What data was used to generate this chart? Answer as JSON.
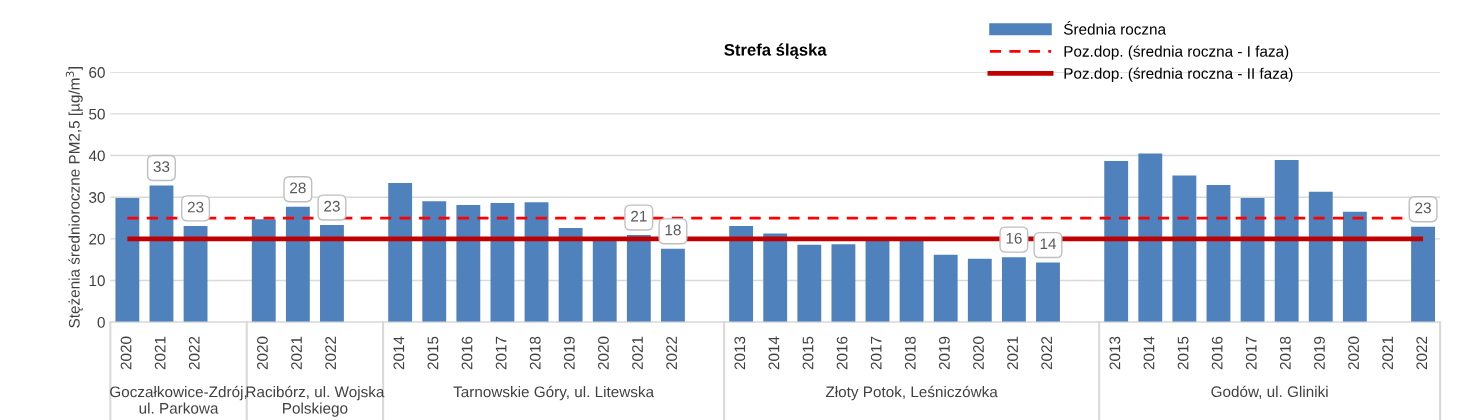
{
  "chart_data": {
    "type": "bar",
    "title": "Strefa śląska",
    "ylabel": "Stężenia średnioroczne PM2,5 [µg/m$^{3}$]",
    "categories": [
      "2020",
      "2021",
      "2022",
      null,
      "2020",
      "2021",
      "2022",
      null,
      "2014",
      "2015",
      "2016",
      "2017",
      "2018",
      "2019",
      "2020",
      "2021",
      "2022",
      null,
      "2013",
      "2014",
      "2015",
      "2016",
      "2017",
      "2018",
      "2019",
      "2020",
      "2021",
      "2022",
      null,
      "2013",
      "2014",
      "2015",
      "2016",
      "2017",
      "2018",
      "2019",
      "2020",
      "2021",
      "2022"
    ],
    "series": [
      {
        "name": "Średnia roczna",
        "color": "#4f81bd",
        "values": [
          29.8,
          32.8,
          23.1,
          null,
          24.7,
          27.7,
          23.3,
          null,
          33.4,
          29.0,
          28.1,
          28.6,
          28.8,
          22.6,
          19.8,
          20.9,
          17.6,
          null,
          23.1,
          21.3,
          18.6,
          18.7,
          20.2,
          20.2,
          16.2,
          15.2,
          15.6,
          14.3,
          null,
          38.7,
          40.5,
          35.2,
          32.9,
          29.8,
          38.9,
          31.3,
          26.5,
          null,
          22.9
        ],
        "value_labels": [
          null,
          "33",
          "23",
          null,
          null,
          "28",
          "23",
          null,
          null,
          null,
          null,
          null,
          null,
          null,
          null,
          "21",
          "18",
          null,
          null,
          null,
          null,
          null,
          null,
          null,
          null,
          null,
          "16",
          "14",
          null,
          null,
          null,
          null,
          null,
          null,
          null,
          null,
          null,
          null,
          "23"
        ]
      }
    ],
    "ylim": [
      0,
      60
    ],
    "yticks": [
      0,
      10,
      20,
      30,
      40,
      50,
      60
    ],
    "grid": "y",
    "legend": "top right",
    "ref_lines": [
      {
        "axis": "y",
        "value": 25,
        "label": "Poz.dop. (średnia roczna - I faza)",
        "color": "#ff0000",
        "line_style": "dashed"
      },
      {
        "axis": "y",
        "value": 20,
        "label": "Poz.dop. (średnia roczna - II faza)",
        "color": "#c00000",
        "line_style": "solid"
      }
    ],
    "annotations": [
      "Goczałkowice-Zdrój,\nul. Parkowa",
      "Racibórz, ul. Wojska\nPolskiego",
      "Tarnowskie Góry, ul. Litewska",
      "Złoty Potok, Leśniczówka",
      "Godów, ul. Gliniki"
    ]
  }
}
